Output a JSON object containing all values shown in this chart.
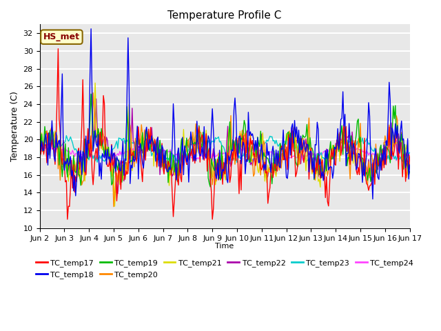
{
  "title": "Temperature Profile C",
  "xlabel": "Time",
  "ylabel": "Temperature (C)",
  "ylim": [
    10,
    33
  ],
  "yticks": [
    10,
    12,
    14,
    16,
    18,
    20,
    22,
    24,
    26,
    28,
    30,
    32
  ],
  "xlim": [
    0,
    360
  ],
  "annotation_text": "HS_met",
  "annotation_bg": "#FFFFCC",
  "annotation_border": "#886600",
  "annotation_text_color": "#880000",
  "series_colors": {
    "TC_temp17": "#FF0000",
    "TC_temp18": "#0000EE",
    "TC_temp19": "#00BB00",
    "TC_temp20": "#FF8800",
    "TC_temp21": "#DDDD00",
    "TC_temp22": "#AA00AA",
    "TC_temp23": "#00CCCC",
    "TC_temp24": "#FF44FF"
  },
  "xtick_labels": [
    "Jun 2",
    "Jun 3",
    "Jun 4",
    "Jun 5",
    "Jun 6",
    "Jun 7",
    "Jun 8",
    "Jun 9",
    "Jun 10",
    "Jun 11",
    "Jun 12",
    "Jun 13",
    "Jun 14",
    "Jun 15",
    "Jun 16",
    "Jun 17"
  ],
  "xtick_positions": [
    0,
    24,
    48,
    72,
    96,
    120,
    144,
    168,
    192,
    216,
    240,
    264,
    288,
    312,
    336,
    360
  ],
  "background_color": "#E8E8E8",
  "grid_color": "#FFFFFF",
  "line_width": 1.0,
  "figsize": [
    6.4,
    4.8
  ],
  "dpi": 100
}
